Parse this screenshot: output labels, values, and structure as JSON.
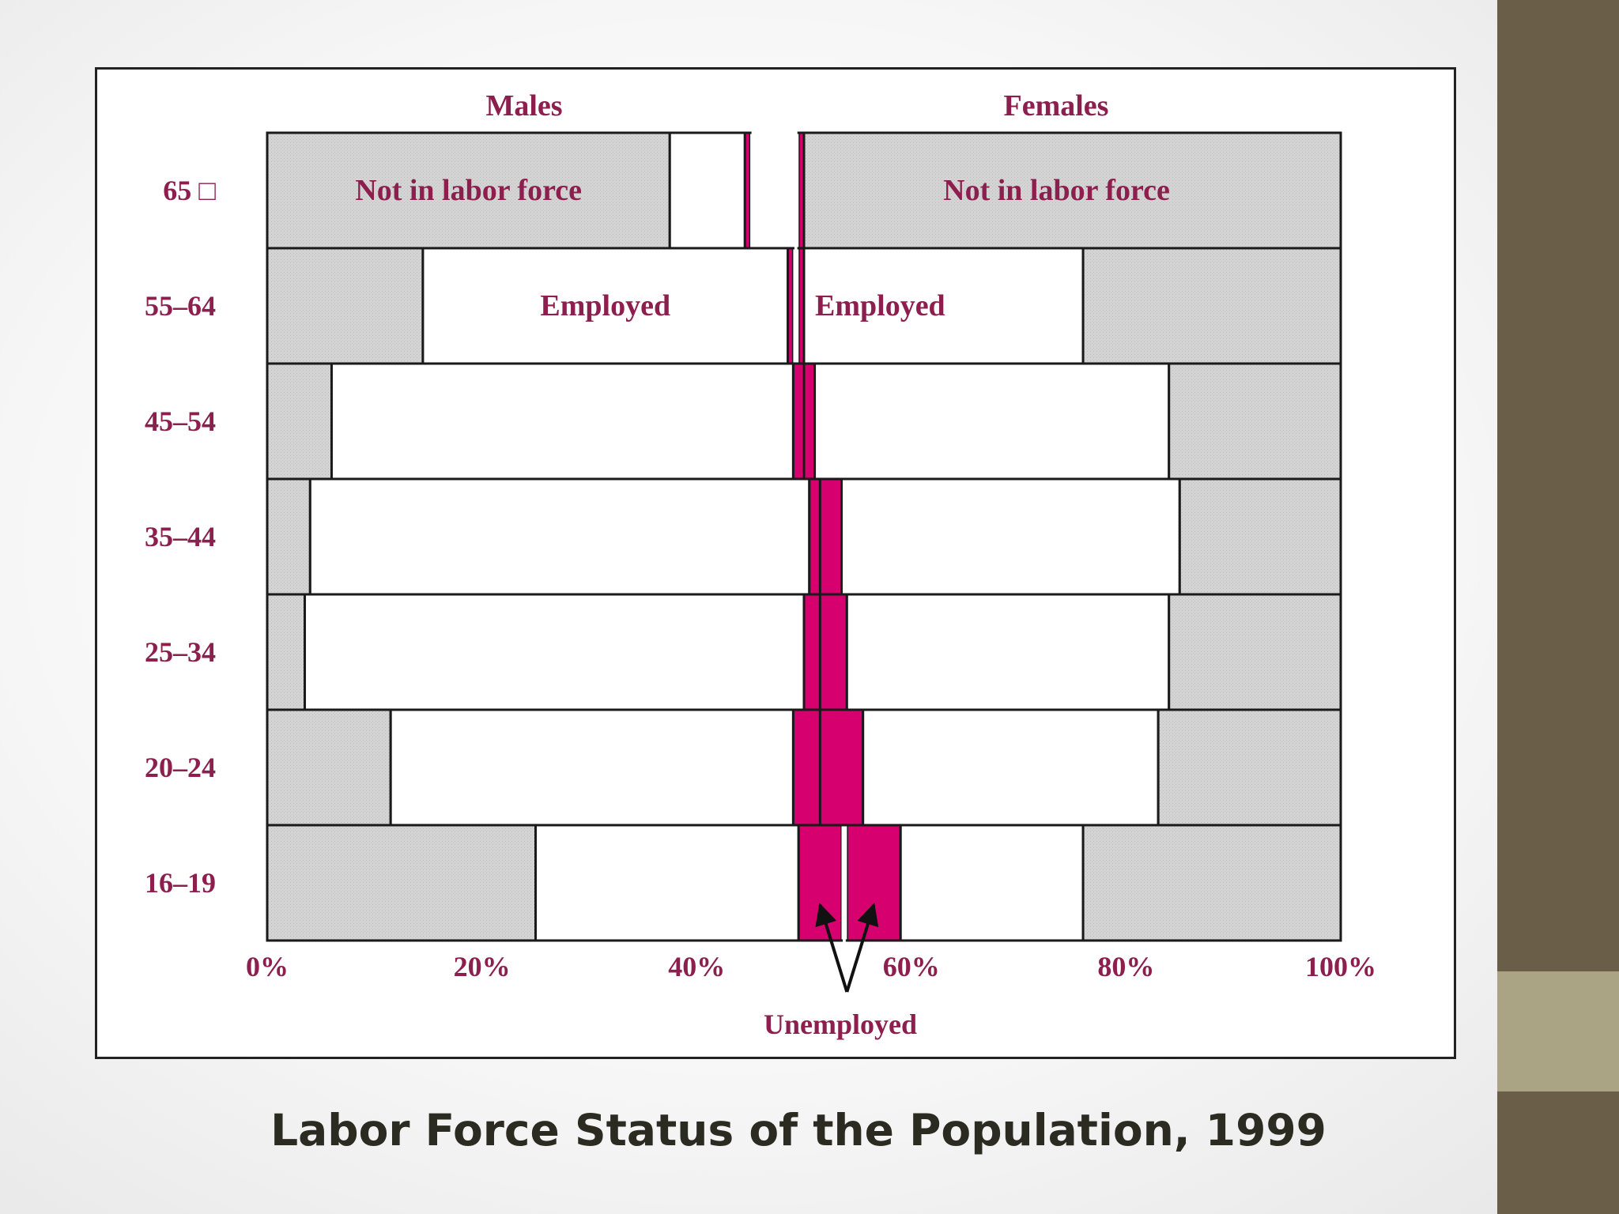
{
  "caption": "Labor Force Status of the Population, 1999",
  "colors": {
    "not_in_labor_force": "#d4d4d4",
    "employed": "#ffffff",
    "unemployed": "#d6006e",
    "label_text": "#8c1f4e",
    "sidebar_dark": "#6a5e48",
    "sidebar_light": "#aba484"
  },
  "chart_data": {
    "type": "bar",
    "subtype": "back-to-back stacked horizontal bars",
    "panel_labels": {
      "left": "Males",
      "right": "Females"
    },
    "categories": [
      "65 □",
      "55–64",
      "45–54",
      "35–44",
      "25–34",
      "20–24",
      "16–19"
    ],
    "x_tick_labels": [
      "0%",
      "20%",
      "40%",
      "60%",
      "80%",
      "100%"
    ],
    "x_ticks": [
      0,
      20,
      40,
      60,
      80,
      100
    ],
    "xlim": [
      0,
      100
    ],
    "series_order": [
      "Not in labor force",
      "Employed",
      "Unemployed"
    ],
    "males": {
      "not_in_labor_force": [
        37.5,
        14.5,
        6.0,
        4.0,
        3.5,
        11.5,
        25.0
      ],
      "employed": [
        7.0,
        34.0,
        43.0,
        46.5,
        46.5,
        37.5,
        24.5
      ],
      "unemployed": [
        0.5,
        0.5,
        1.0,
        1.5,
        2.0,
        3.0,
        4.0
      ]
    },
    "females": {
      "unemployed": [
        0.5,
        0.5,
        1.0,
        2.0,
        2.5,
        4.0,
        5.0
      ],
      "employed": [
        0.0,
        26.0,
        33.0,
        31.5,
        30.0,
        27.5,
        17.0
      ],
      "not_in_labor_force": [
        50.0,
        24.0,
        16.0,
        15.0,
        16.0,
        17.0,
        24.0
      ]
    },
    "annotations": {
      "not_in_labor_force": "Not in labor force",
      "employed": "Employed",
      "unemployed": "Unemployed"
    }
  }
}
